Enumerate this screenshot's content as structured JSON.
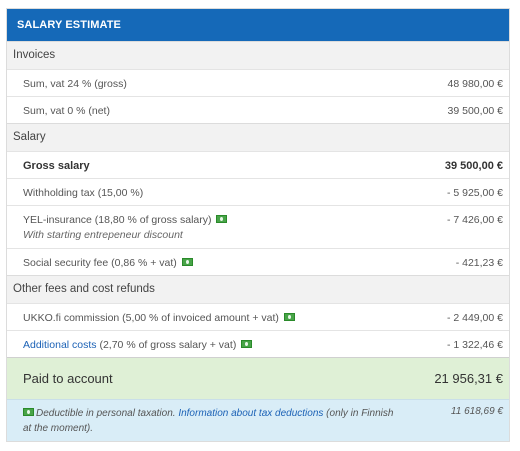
{
  "header": {
    "title": "SALARY ESTIMATE"
  },
  "sections": {
    "invoices": "Invoices",
    "salary": "Salary",
    "other": "Other fees and cost refunds"
  },
  "invoices": [
    {
      "label": "Sum, vat 24 % (gross)",
      "amount": "48 980,00 €"
    },
    {
      "label": "Sum, vat 0 % (net)",
      "amount": "39 500,00 €"
    }
  ],
  "salary": {
    "gross": {
      "label": "Gross salary",
      "amount": "39 500,00 €"
    },
    "withholding": {
      "label": "Withholding tax (15,00 %)",
      "amount": "- 5 925,00 €"
    },
    "yel": {
      "label": "YEL-insurance (18,80 % of gross salary)",
      "note": "With starting entrepeneur discount",
      "amount": "- 7 426,00 €"
    },
    "social": {
      "label": "Social security fee (0,86 % + vat)",
      "amount": "- 421,23 €"
    }
  },
  "other": {
    "commission": {
      "label": "UKKO.fi commission (5,00 % of invoiced amount + vat)",
      "amount": "- 2 449,00 €"
    },
    "additional": {
      "link": "Additional costs",
      "label": " (2,70 % of gross salary + vat)",
      "amount": "- 1 322,46 €"
    }
  },
  "paid": {
    "label": "Paid to account",
    "amount": "21 956,31 €"
  },
  "deduction": {
    "text1": "Deductible in personal taxation. ",
    "link": "Information about tax deductions",
    "text2": " (only in Finnish at the moment).",
    "amount": "11 618,69 €"
  },
  "icons": {
    "deductible": "money-icon"
  },
  "colors": {
    "header": "#1569b8",
    "paid_bg": "#dff0d6",
    "info_bg": "#d9edf7",
    "link": "#1c62b6"
  }
}
